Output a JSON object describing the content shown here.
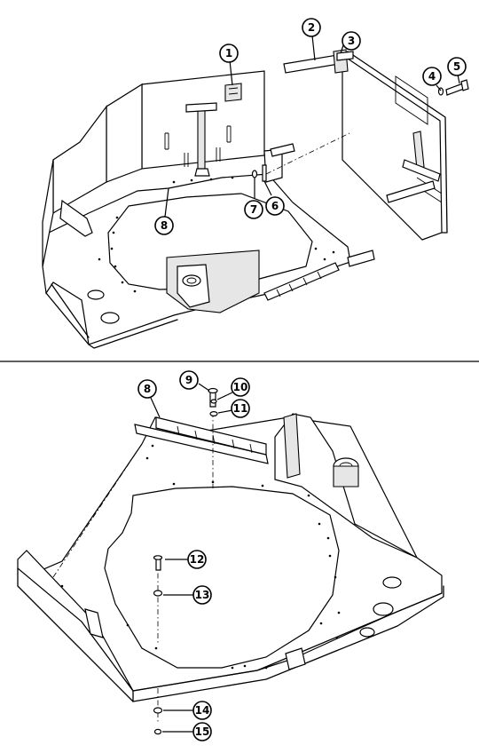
{
  "figure": {
    "top_callouts": [
      {
        "id": "1",
        "label": "1"
      },
      {
        "id": "2",
        "label": "2"
      },
      {
        "id": "3",
        "label": "3"
      },
      {
        "id": "4",
        "label": "4"
      },
      {
        "id": "5",
        "label": "5"
      },
      {
        "id": "6",
        "label": "6"
      },
      {
        "id": "7",
        "label": "7"
      },
      {
        "id": "8",
        "label": "8"
      }
    ],
    "bottom_callouts": [
      {
        "id": "8",
        "label": "8"
      },
      {
        "id": "9",
        "label": "9"
      },
      {
        "id": "10",
        "label": "10"
      },
      {
        "id": "11",
        "label": "11"
      },
      {
        "id": "12",
        "label": "12"
      },
      {
        "id": "13",
        "label": "13"
      },
      {
        "id": "14",
        "label": "14"
      },
      {
        "id": "15",
        "label": "15"
      }
    ]
  }
}
